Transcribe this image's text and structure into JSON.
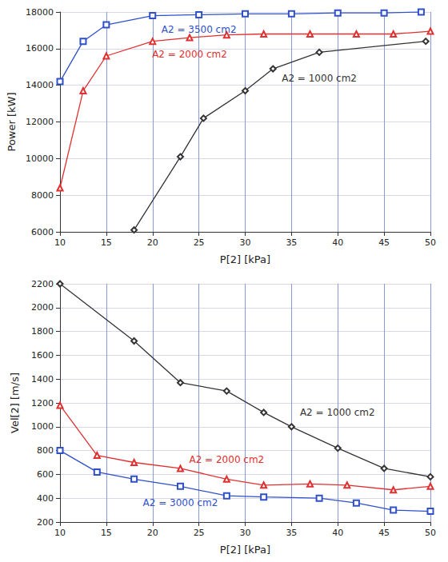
{
  "chart_data": [
    {
      "type": "line",
      "x_label": "P[2] [kPa]",
      "y_label": "Power [kW]",
      "xlim": [
        10,
        50
      ],
      "xticks": [
        10,
        15,
        20,
        25,
        30,
        35,
        40,
        45,
        50
      ],
      "ylim": [
        6000,
        18000
      ],
      "yticks": [
        6000,
        8000,
        10000,
        12000,
        14000,
        16000,
        18000
      ],
      "grid": true,
      "series": [
        {
          "name": "A2 = 3500 cm2",
          "color": "#3050c8",
          "marker": "square",
          "x": [
            10,
            12.5,
            15,
            20,
            25,
            30,
            35,
            40,
            45,
            49
          ],
          "values": [
            14200,
            16400,
            17300,
            17800,
            17850,
            17900,
            17900,
            17950,
            17950,
            18000
          ]
        },
        {
          "name": "A2 = 2000 cm2",
          "color": "#e03030",
          "marker": "triangle",
          "x": [
            10,
            12.5,
            15,
            20,
            24,
            28,
            32,
            37,
            42,
            46,
            50
          ],
          "values": [
            8400,
            13700,
            15600,
            16400,
            16600,
            16750,
            16800,
            16800,
            16800,
            16800,
            16950
          ]
        },
        {
          "name": "A2 = 1000 cm2",
          "color": "#333333",
          "marker": "diamond",
          "x": [
            18,
            23,
            25.5,
            30,
            33,
            38,
            49.5
          ],
          "values": [
            6100,
            10100,
            12200,
            13700,
            14900,
            15800,
            16400
          ]
        }
      ]
    },
    {
      "type": "line",
      "x_label": "P[2] [kPa]",
      "y_label": "Vel[2] [m/s]",
      "xlim": [
        10,
        50
      ],
      "xticks": [
        10,
        15,
        20,
        25,
        30,
        35,
        40,
        45,
        50
      ],
      "ylim": [
        200,
        2200
      ],
      "yticks": [
        200,
        400,
        600,
        800,
        1000,
        1200,
        1400,
        1600,
        1800,
        2000,
        2200
      ],
      "grid": true,
      "series": [
        {
          "name": "A2 = 1000 cm2",
          "color": "#333333",
          "marker": "diamond",
          "x": [
            10,
            18,
            23,
            28,
            32,
            35,
            40,
            45,
            50
          ],
          "values": [
            2200,
            1720,
            1370,
            1300,
            1120,
            1000,
            820,
            650,
            580
          ]
        },
        {
          "name": "A2 = 2000 cm2",
          "color": "#e03030",
          "marker": "triangle",
          "x": [
            10,
            14,
            18,
            23,
            28,
            32,
            37,
            41,
            46,
            50
          ],
          "values": [
            1180,
            760,
            700,
            650,
            560,
            510,
            520,
            510,
            470,
            500
          ]
        },
        {
          "name": "A2 = 3000 cm2",
          "color": "#3050c8",
          "marker": "square",
          "x": [
            10,
            14,
            18,
            23,
            28,
            32,
            38,
            42,
            46,
            50
          ],
          "values": [
            800,
            620,
            560,
            500,
            420,
            410,
            400,
            360,
            300,
            290
          ]
        }
      ]
    }
  ]
}
